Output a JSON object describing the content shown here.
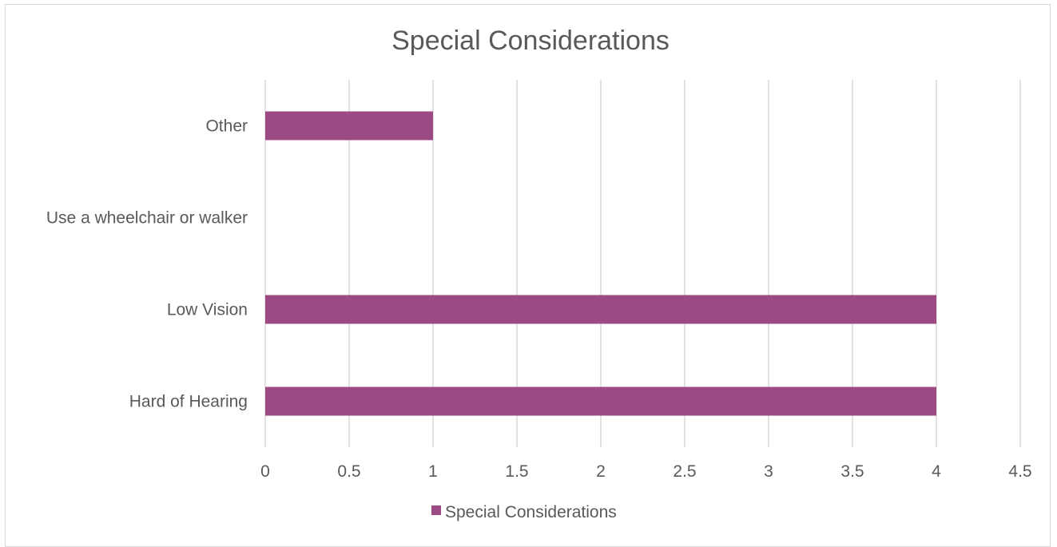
{
  "chart_data": {
    "type": "bar",
    "orientation": "horizontal",
    "title": "Special Considerations",
    "categories": [
      "Hard of Hearing",
      "Low Vision",
      "Use a wheelchair or walker",
      "Other"
    ],
    "series": [
      {
        "name": "Special Considerations",
        "values": [
          4,
          4,
          0,
          1
        ],
        "color": "#9c4a84"
      }
    ],
    "xlim": [
      0,
      4.5
    ],
    "x_ticks": [
      "0",
      "0.5",
      "1",
      "1.5",
      "2",
      "2.5",
      "3",
      "3.5",
      "4",
      "4.5"
    ],
    "xlabel": "",
    "ylabel": "",
    "grid": "vertical",
    "legend": "bottom"
  }
}
